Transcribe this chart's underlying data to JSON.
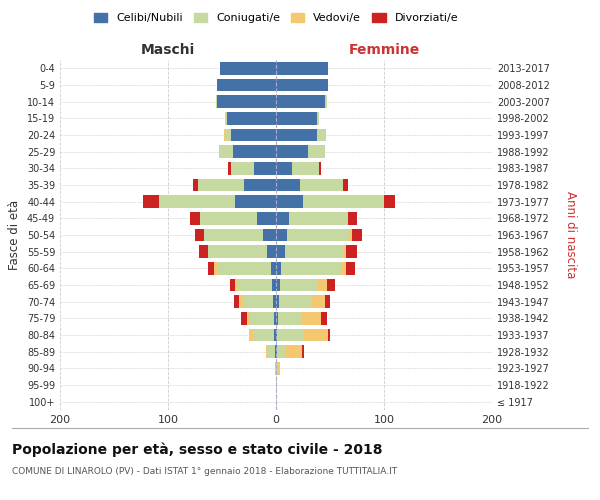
{
  "age_groups": [
    "100+",
    "95-99",
    "90-94",
    "85-89",
    "80-84",
    "75-79",
    "70-74",
    "65-69",
    "60-64",
    "55-59",
    "50-54",
    "45-49",
    "40-44",
    "35-39",
    "30-34",
    "25-29",
    "20-24",
    "15-19",
    "10-14",
    "5-9",
    "0-4"
  ],
  "birth_years": [
    "≤ 1917",
    "1918-1922",
    "1923-1927",
    "1928-1932",
    "1933-1937",
    "1938-1942",
    "1943-1947",
    "1948-1952",
    "1953-1957",
    "1958-1962",
    "1963-1967",
    "1968-1972",
    "1973-1977",
    "1978-1982",
    "1983-1987",
    "1988-1992",
    "1993-1997",
    "1998-2002",
    "2003-2007",
    "2008-2012",
    "2013-2017"
  ],
  "m_celibi": [
    0,
    0,
    0,
    1,
    2,
    2,
    3,
    4,
    5,
    8,
    12,
    18,
    38,
    30,
    20,
    40,
    42,
    45,
    55,
    55,
    52
  ],
  "m_coniugati": [
    0,
    0,
    1,
    6,
    18,
    22,
    28,
    32,
    50,
    55,
    55,
    52,
    70,
    42,
    22,
    12,
    5,
    2,
    1,
    0,
    0
  ],
  "m_vedovi": [
    0,
    0,
    0,
    2,
    5,
    3,
    3,
    2,
    2,
    0,
    0,
    0,
    0,
    0,
    0,
    1,
    1,
    0,
    0,
    0,
    0
  ],
  "m_divorziati": [
    0,
    0,
    0,
    0,
    0,
    5,
    5,
    5,
    6,
    8,
    8,
    10,
    15,
    5,
    2,
    0,
    0,
    0,
    0,
    0,
    0
  ],
  "f_nubili": [
    0,
    0,
    0,
    1,
    1,
    2,
    3,
    4,
    5,
    8,
    10,
    12,
    25,
    22,
    15,
    30,
    38,
    38,
    45,
    48,
    48
  ],
  "f_coniugate": [
    0,
    1,
    2,
    8,
    25,
    22,
    30,
    35,
    55,
    55,
    58,
    55,
    75,
    40,
    25,
    15,
    8,
    2,
    2,
    0,
    0
  ],
  "f_vedove": [
    0,
    0,
    2,
    15,
    22,
    18,
    12,
    8,
    5,
    2,
    2,
    0,
    0,
    0,
    0,
    0,
    0,
    0,
    0,
    0,
    0
  ],
  "f_divorziate": [
    0,
    0,
    0,
    2,
    2,
    5,
    5,
    8,
    8,
    10,
    10,
    8,
    10,
    5,
    2,
    0,
    0,
    0,
    0,
    0,
    0
  ],
  "col_celibi": "#4472a8",
  "col_coniugati": "#c5d9a0",
  "col_vedovi": "#f5c76e",
  "col_divorziati": "#cc2222",
  "title": "Popolazione per età, sesso e stato civile - 2018",
  "subtitle": "COMUNE DI LINAROLO (PV) - Dati ISTAT 1° gennaio 2018 - Elaborazione TUTTITALIA.IT",
  "legend_labels": [
    "Celibi/Nubili",
    "Coniugati/e",
    "Vedovi/e",
    "Divorziati/e"
  ],
  "xlim": 200
}
